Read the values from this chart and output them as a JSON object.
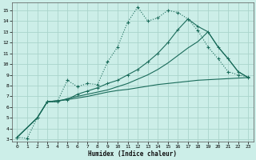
{
  "bg_color": "#cceee8",
  "grid_color": "#aad4cc",
  "line_color": "#1a6b5a",
  "xlabel": "Humidex (Indice chaleur)",
  "xlim": [
    -0.5,
    23.5
  ],
  "ylim": [
    2.8,
    15.7
  ],
  "yticks": [
    3,
    4,
    5,
    6,
    7,
    8,
    9,
    10,
    11,
    12,
    13,
    14,
    15
  ],
  "xticks": [
    0,
    1,
    2,
    3,
    4,
    5,
    6,
    7,
    8,
    9,
    10,
    11,
    12,
    13,
    14,
    15,
    16,
    17,
    18,
    19,
    20,
    21,
    22,
    23
  ],
  "series1_x": [
    0,
    1,
    2,
    3,
    4,
    5,
    6,
    7,
    8,
    9,
    10,
    11,
    12,
    13,
    14,
    15,
    16,
    17,
    18,
    19,
    20,
    21,
    22,
    23
  ],
  "series1_y": [
    3.2,
    3.1,
    5.0,
    6.5,
    6.5,
    8.5,
    7.9,
    8.2,
    8.1,
    10.2,
    11.6,
    13.9,
    15.3,
    14.0,
    14.3,
    15.0,
    14.8,
    14.2,
    13.1,
    11.6,
    10.5,
    9.3,
    9.0,
    8.8
  ],
  "series2_x": [
    0,
    2,
    3,
    4,
    5,
    6,
    7,
    8,
    9,
    10,
    11,
    12,
    13,
    14,
    15,
    16,
    17,
    18,
    19,
    20,
    21,
    22,
    23
  ],
  "series2_y": [
    3.2,
    5.0,
    6.5,
    6.6,
    6.7,
    6.85,
    7.0,
    7.2,
    7.4,
    7.55,
    7.65,
    7.8,
    7.95,
    8.1,
    8.2,
    8.3,
    8.4,
    8.5,
    8.55,
    8.6,
    8.65,
    8.7,
    8.75
  ],
  "series3_x": [
    0,
    2,
    3,
    4,
    5,
    6,
    7,
    8,
    9,
    10,
    11,
    12,
    13,
    14,
    15,
    16,
    17,
    18,
    19,
    20,
    21,
    22,
    23
  ],
  "series3_y": [
    3.2,
    5.0,
    6.5,
    6.5,
    6.8,
    7.0,
    7.2,
    7.4,
    7.6,
    7.9,
    8.2,
    8.6,
    9.0,
    9.5,
    10.1,
    10.8,
    11.5,
    12.1,
    13.0,
    11.6,
    10.5,
    9.3,
    8.75
  ],
  "series4_x": [
    0,
    2,
    3,
    5,
    6,
    7,
    8,
    9,
    10,
    11,
    12,
    13,
    14,
    15,
    16,
    17,
    18,
    19,
    20,
    21,
    22,
    23
  ],
  "series4_y": [
    3.2,
    5.0,
    6.5,
    6.7,
    7.2,
    7.5,
    7.8,
    8.2,
    8.5,
    9.0,
    9.5,
    10.2,
    11.0,
    12.0,
    13.2,
    14.2,
    13.5,
    13.0,
    11.6,
    10.5,
    9.3,
    8.75
  ]
}
